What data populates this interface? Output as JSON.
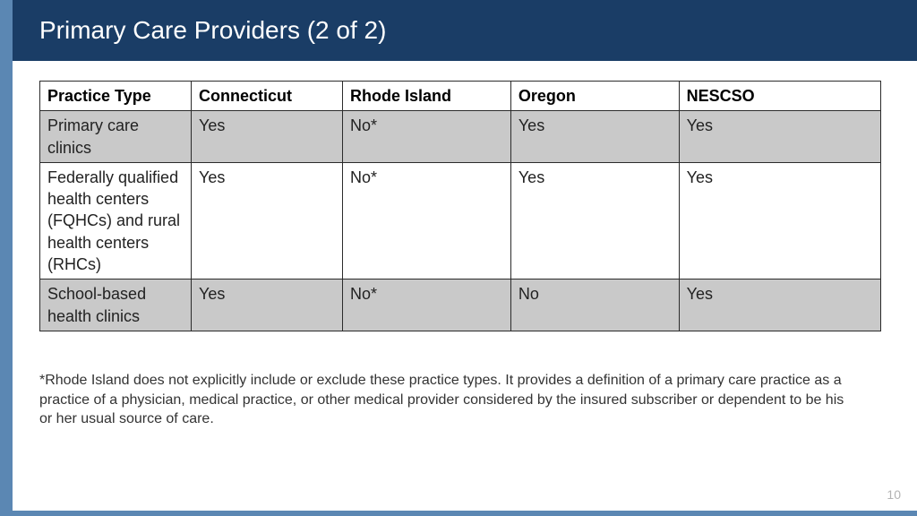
{
  "title": "Primary Care Providers (2 of 2)",
  "table": {
    "columns": [
      "Practice Type",
      "Connecticut",
      "Rhode Island",
      "Oregon",
      "NESCSO"
    ],
    "rows": [
      {
        "shaded": true,
        "cells": [
          "Primary care clinics",
          "Yes",
          "No*",
          "Yes",
          "Yes"
        ]
      },
      {
        "shaded": false,
        "cells": [
          "Federally qualified health centers (FQHCs) and rural health centers (RHCs)",
          "Yes",
          "No*",
          "Yes",
          "Yes"
        ]
      },
      {
        "shaded": true,
        "cells": [
          "School-based health clinics",
          "Yes",
          "No*",
          "No",
          "Yes"
        ]
      }
    ],
    "header_bg": "#ffffff",
    "shaded_bg": "#c9c9c9",
    "border_color": "#2b2b2b",
    "font_size": 18
  },
  "footnote": "*Rhode Island does not explicitly include or exclude these practice types.  It provides a definition of a primary care practice as a practice of a physician, medical practice, or other medical provider considered by the insured subscriber or dependent to be his or her usual source of care.",
  "page_number": "10",
  "colors": {
    "title_bar_bg": "#1a3d66",
    "title_text": "#ffffff",
    "left_border": "#5b87b3",
    "bottom_border": "#5b87b3",
    "page_num_color": "#b3b3b3"
  }
}
